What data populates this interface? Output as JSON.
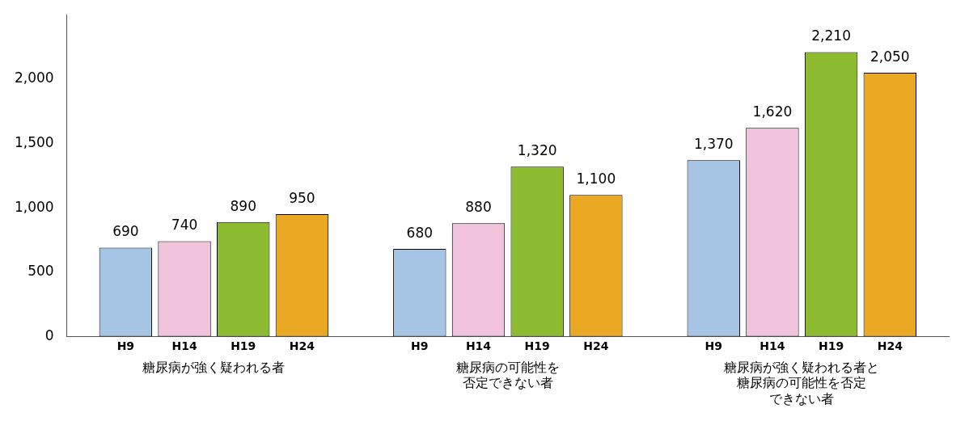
{
  "chart_data": {
    "type": "bar",
    "categories": [
      [
        "糖尿病が強く疑われる者"
      ],
      [
        "糖尿病の可能性を",
        "否定できない者"
      ],
      [
        "糖尿病が強く疑われる者と",
        "糖尿病の可能性を否定",
        "できない者"
      ]
    ],
    "series": [
      {
        "name": "H9",
        "color": "#a6c4e3",
        "values": [
          690,
          680,
          1370
        ],
        "value_labels": [
          "690",
          "680",
          "1,370"
        ]
      },
      {
        "name": "H14",
        "color": "#f2c4dc",
        "values": [
          740,
          880,
          1620
        ],
        "value_labels": [
          "740",
          "880",
          "1,620"
        ]
      },
      {
        "name": "H19",
        "color": "#8cbb2f",
        "values": [
          890,
          1320,
          2210
        ],
        "value_labels": [
          "890",
          "1,320",
          "2,210"
        ]
      },
      {
        "name": "H24",
        "color": "#eba822",
        "values": [
          950,
          1100,
          2050
        ],
        "value_labels": [
          "950",
          "1,100",
          "2,050"
        ]
      }
    ],
    "ylim": [
      0,
      2500
    ],
    "yticks": [
      0,
      500,
      {
        "value": 1000,
        "label": "1,000"
      },
      {
        "value": 1500,
        "label": "1,500"
      },
      {
        "value": 2000,
        "label": "2,000"
      }
    ],
    "grid": false,
    "data_labels": true
  }
}
